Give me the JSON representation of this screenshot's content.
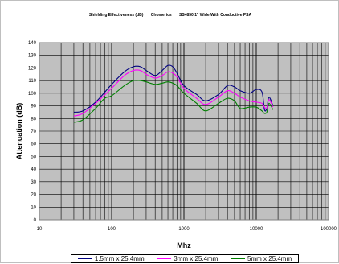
{
  "chart_data": {
    "type": "line",
    "title_parts": [
      "Shielding Effectiveness (dB)",
      "Chomerics",
      "SS4850 1\" Wide With Conductive PSA"
    ],
    "xlabel": "Mhz",
    "ylabel": "Attenuation (dB)",
    "x_scale": "log",
    "xlim": [
      10,
      100000
    ],
    "ylim": [
      0,
      140
    ],
    "x_ticks": [
      "10",
      "100",
      "1000",
      "10000",
      "100000"
    ],
    "y_ticks": [
      "0",
      "10",
      "20",
      "30",
      "40",
      "50",
      "60",
      "70",
      "80",
      "90",
      "100",
      "110",
      "120",
      "130",
      "140"
    ],
    "grid": true,
    "legend_position": "bottom",
    "series": [
      {
        "name": "1.5mm x 25.4mm",
        "color": "#000080",
        "points": [
          [
            30,
            85
          ],
          [
            40,
            86
          ],
          [
            60,
            93
          ],
          [
            100,
            107
          ],
          [
            150,
            117
          ],
          [
            200,
            121
          ],
          [
            250,
            121
          ],
          [
            300,
            118
          ],
          [
            400,
            114
          ],
          [
            500,
            118
          ],
          [
            600,
            122
          ],
          [
            700,
            121
          ],
          [
            800,
            116
          ],
          [
            1000,
            106
          ],
          [
            1500,
            99
          ],
          [
            2000,
            94
          ],
          [
            3000,
            99
          ],
          [
            4000,
            106
          ],
          [
            5000,
            105
          ],
          [
            6000,
            102
          ],
          [
            8000,
            100
          ],
          [
            10000,
            103
          ],
          [
            12000,
            101
          ],
          [
            13000,
            87
          ],
          [
            14000,
            88
          ],
          [
            15000,
            97
          ],
          [
            17000,
            90
          ]
        ]
      },
      {
        "name": "3mm x 25.4mm",
        "color": "#ff00ff",
        "points": [
          [
            30,
            82
          ],
          [
            40,
            84
          ],
          [
            60,
            92
          ],
          [
            100,
            104
          ],
          [
            150,
            114
          ],
          [
            200,
            118
          ],
          [
            250,
            118
          ],
          [
            300,
            115
          ],
          [
            400,
            112
          ],
          [
            500,
            114
          ],
          [
            600,
            117
          ],
          [
            700,
            116
          ],
          [
            800,
            113
          ],
          [
            1000,
            104
          ],
          [
            1500,
            96
          ],
          [
            2000,
            91
          ],
          [
            3000,
            97
          ],
          [
            4000,
            102
          ],
          [
            5000,
            100
          ],
          [
            6000,
            97
          ],
          [
            8000,
            94
          ],
          [
            10000,
            93
          ],
          [
            12000,
            92
          ],
          [
            13000,
            89
          ],
          [
            14000,
            88
          ],
          [
            15000,
            95
          ],
          [
            17000,
            89
          ]
        ]
      },
      {
        "name": "5mm x 25.4mm",
        "color": "#008000",
        "points": [
          [
            30,
            77
          ],
          [
            40,
            79
          ],
          [
            60,
            88
          ],
          [
            80,
            96
          ],
          [
            100,
            98
          ],
          [
            150,
            106
          ],
          [
            200,
            110
          ],
          [
            250,
            110
          ],
          [
            300,
            109
          ],
          [
            400,
            107
          ],
          [
            500,
            108
          ],
          [
            600,
            109
          ],
          [
            700,
            108
          ],
          [
            800,
            106
          ],
          [
            1000,
            100
          ],
          [
            1500,
            92
          ],
          [
            2000,
            86
          ],
          [
            3000,
            92
          ],
          [
            4000,
            96
          ],
          [
            5000,
            94
          ],
          [
            6000,
            88
          ],
          [
            8000,
            89
          ],
          [
            10000,
            89
          ],
          [
            12000,
            86
          ],
          [
            13000,
            84
          ],
          [
            14000,
            85
          ],
          [
            15000,
            92
          ],
          [
            17000,
            87
          ]
        ]
      }
    ]
  }
}
